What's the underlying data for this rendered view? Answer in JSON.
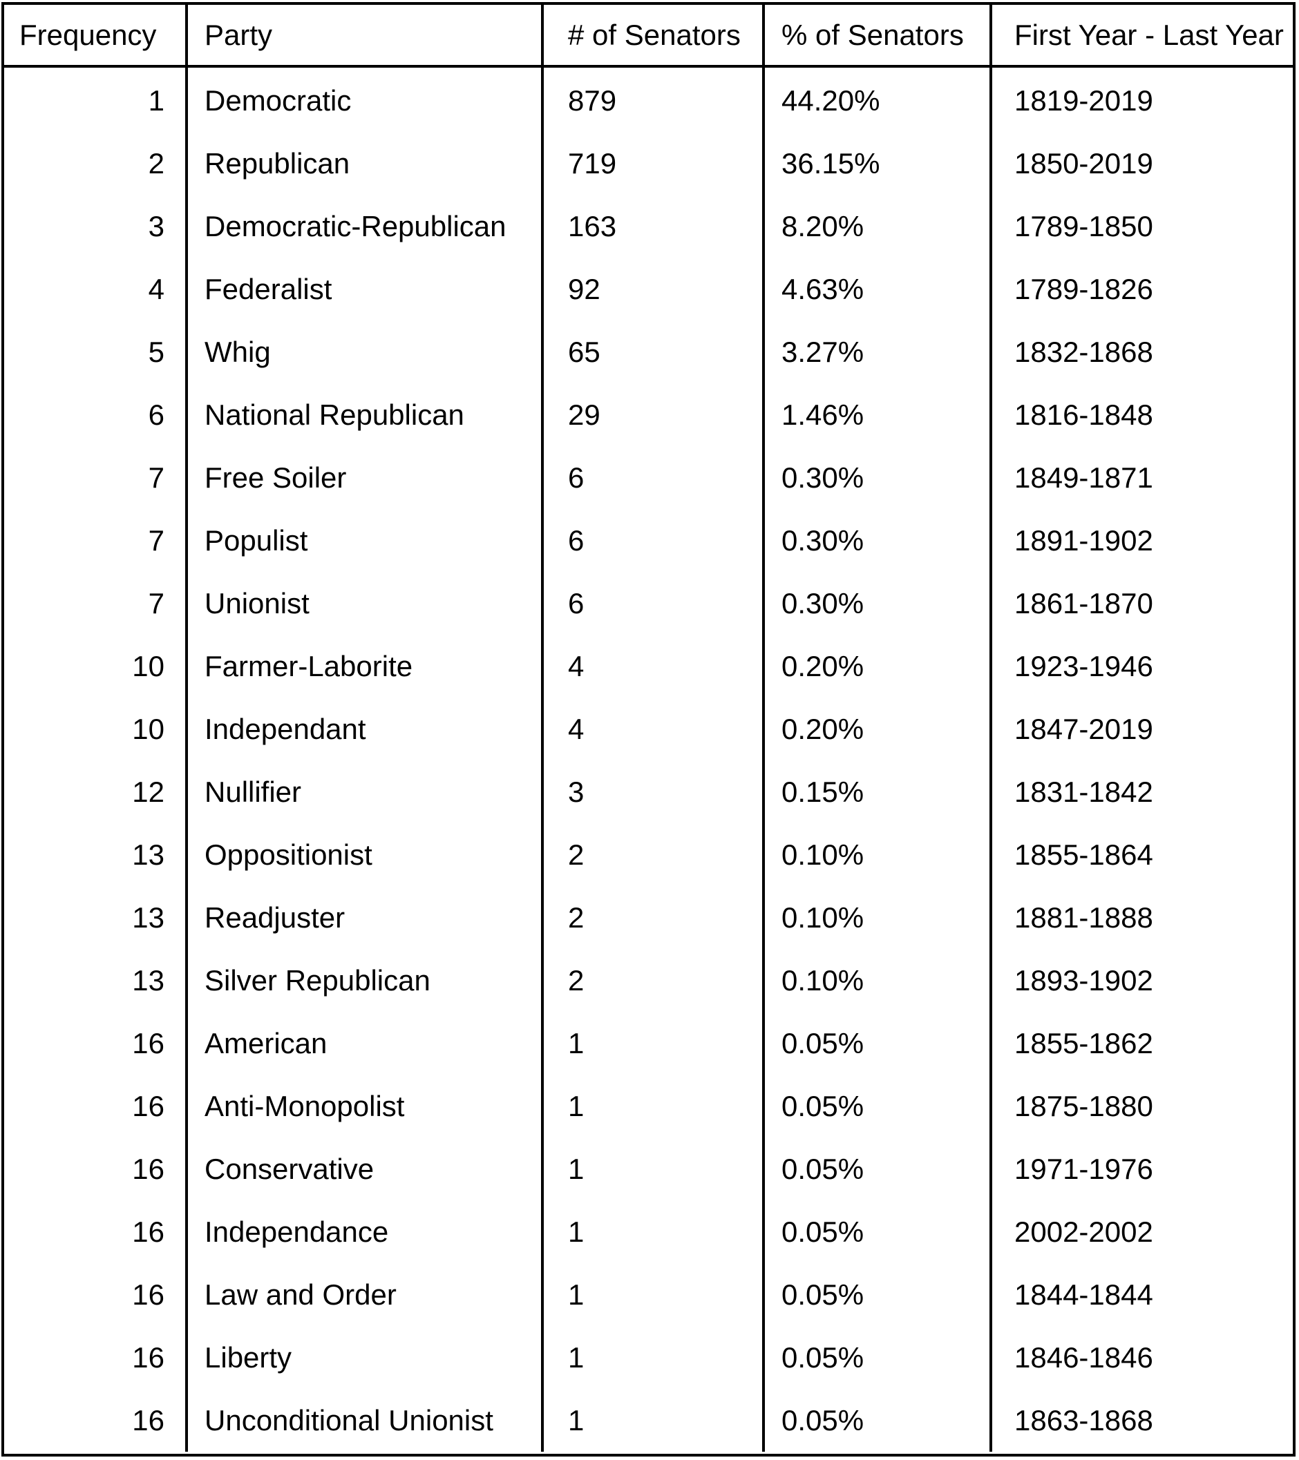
{
  "table": {
    "headers": {
      "frequency": "Frequency",
      "party": "Party",
      "num_senators": "# of Senators",
      "pct_senators": "% of Senators",
      "years": "First Year - Last Year"
    },
    "rows": [
      {
        "frequency": "1",
        "party": "Democratic",
        "num_senators": "879",
        "pct_senators": "44.20%",
        "years": "1819-2019"
      },
      {
        "frequency": "2",
        "party": "Republican",
        "num_senators": "719",
        "pct_senators": "36.15%",
        "years": "1850-2019"
      },
      {
        "frequency": "3",
        "party": "Democratic-Republican",
        "num_senators": "163",
        "pct_senators": "8.20%",
        "years": "1789-1850"
      },
      {
        "frequency": "4",
        "party": "Federalist",
        "num_senators": "92",
        "pct_senators": "4.63%",
        "years": "1789-1826"
      },
      {
        "frequency": "5",
        "party": "Whig",
        "num_senators": "65",
        "pct_senators": "3.27%",
        "years": "1832-1868"
      },
      {
        "frequency": "6",
        "party": "National Republican",
        "num_senators": "29",
        "pct_senators": "1.46%",
        "years": "1816-1848"
      },
      {
        "frequency": "7",
        "party": "Free Soiler",
        "num_senators": "6",
        "pct_senators": "0.30%",
        "years": "1849-1871"
      },
      {
        "frequency": "7",
        "party": "Populist",
        "num_senators": "6",
        "pct_senators": "0.30%",
        "years": "1891-1902"
      },
      {
        "frequency": "7",
        "party": "Unionist",
        "num_senators": "6",
        "pct_senators": "0.30%",
        "years": "1861-1870"
      },
      {
        "frequency": "10",
        "party": "Farmer-Laborite",
        "num_senators": "4",
        "pct_senators": "0.20%",
        "years": "1923-1946"
      },
      {
        "frequency": "10",
        "party": "Independant",
        "num_senators": "4",
        "pct_senators": "0.20%",
        "years": "1847-2019"
      },
      {
        "frequency": "12",
        "party": "Nullifier",
        "num_senators": "3",
        "pct_senators": "0.15%",
        "years": "1831-1842"
      },
      {
        "frequency": "13",
        "party": "Oppositionist",
        "num_senators": "2",
        "pct_senators": "0.10%",
        "years": "1855-1864"
      },
      {
        "frequency": "13",
        "party": "Readjuster",
        "num_senators": "2",
        "pct_senators": "0.10%",
        "years": "1881-1888"
      },
      {
        "frequency": "13",
        "party": "Silver Republican",
        "num_senators": "2",
        "pct_senators": "0.10%",
        "years": "1893-1902"
      },
      {
        "frequency": "16",
        "party": "American",
        "num_senators": "1",
        "pct_senators": "0.05%",
        "years": "1855-1862"
      },
      {
        "frequency": "16",
        "party": "Anti-Monopolist",
        "num_senators": "1",
        "pct_senators": "0.05%",
        "years": "1875-1880"
      },
      {
        "frequency": "16",
        "party": "Conservative",
        "num_senators": "1",
        "pct_senators": "0.05%",
        "years": "1971-1976"
      },
      {
        "frequency": "16",
        "party": "Independance",
        "num_senators": "1",
        "pct_senators": "0.05%",
        "years": "2002-2002"
      },
      {
        "frequency": "16",
        "party": "Law and Order",
        "num_senators": "1",
        "pct_senators": "0.05%",
        "years": "1844-1844"
      },
      {
        "frequency": "16",
        "party": "Liberty",
        "num_senators": "1",
        "pct_senators": "0.05%",
        "years": "1846-1846"
      },
      {
        "frequency": "16",
        "party": "Unconditional Unionist",
        "num_senators": "1",
        "pct_senators": "0.05%",
        "years": "1863-1868"
      }
    ]
  }
}
